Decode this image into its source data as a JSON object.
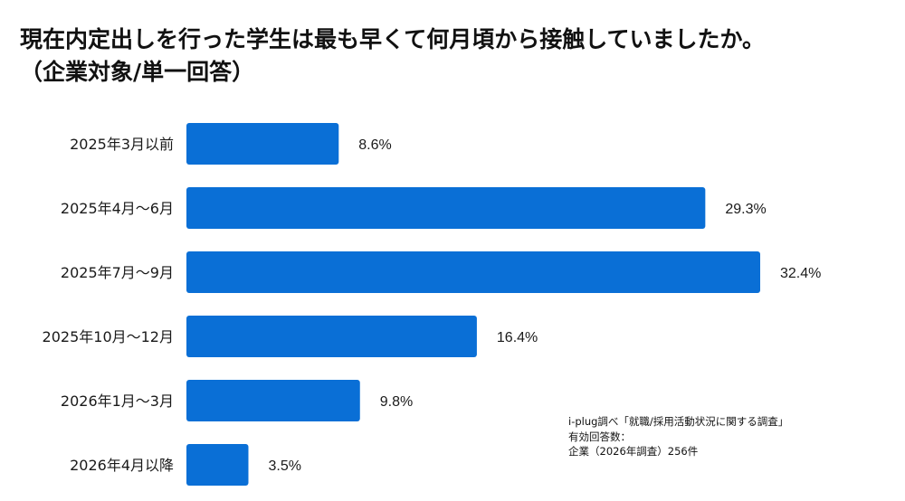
{
  "title": {
    "line1": "現在内定出しを行った学生は最も早くて何月頃から接触していましたか。",
    "line2": "（企業対象/単一回答）"
  },
  "source_note": {
    "line1": "i-plug調べ「就職/採用活動状況に関する調査」",
    "line2": "有効回答数：",
    "line3": "企業（2026年調査）256件"
  },
  "colors": {
    "bar": "#0a6fd6",
    "text": "#1a1a1a"
  },
  "chart_data": {
    "type": "bar",
    "orientation": "horizontal",
    "categories": [
      "2025年3月以前",
      "2025年4月～6月",
      "2025年7月～9月",
      "2025年10月～12月",
      "2026年1月～3月",
      "2026年4月以降"
    ],
    "values": [
      8.6,
      29.3,
      32.4,
      16.4,
      9.8,
      3.5
    ],
    "value_labels": [
      "8.6%",
      "29.3%",
      "32.4%",
      "16.4%",
      "9.8%",
      "3.5%"
    ],
    "unit": "%",
    "xlim": [
      0,
      32.4
    ],
    "grid": false,
    "legend": false
  }
}
